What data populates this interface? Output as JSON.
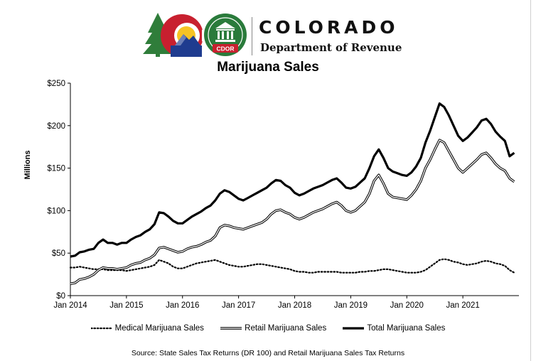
{
  "header": {
    "org_name": "COLORADO",
    "dept_name": "Department of Revenue",
    "seal_text": "CDOR",
    "colors": {
      "co_blue": "#1f3c8f",
      "co_red": "#c8202f",
      "co_gold": "#f6c324",
      "seal_green": "#2a7b3b",
      "tree_green": "#2f7d3a"
    }
  },
  "source_note": "Source: State Sales Tax Returns (DR 100) and Retail Marijuana  Sales Tax Returns",
  "chart_data": {
    "type": "line",
    "title": "Marijuana Sales",
    "ylabel": "Millions",
    "xlabel": "",
    "ylim": [
      0,
      250
    ],
    "y_ticks": [
      0,
      50,
      100,
      150,
      200,
      250
    ],
    "y_tick_labels": [
      "$0",
      "$50",
      "$100",
      "$150",
      "$200",
      "$250"
    ],
    "x_tick_labels": [
      "Jan 2014",
      "Jan 2015",
      "Jan 2016",
      "Jan 2017",
      "Jan 2018",
      "Jan 2019",
      "Jan 2020",
      "Jan 2021"
    ],
    "x_start": "Jan 2014",
    "x_end": "Dec 2021",
    "grid": false,
    "legend_position": "bottom",
    "series": [
      {
        "name": "Medical Marijuana Sales",
        "style": "dotted",
        "values": [
          33,
          33,
          34,
          33,
          32,
          31,
          31,
          31,
          30,
          30,
          30,
          30,
          29,
          30,
          31,
          32,
          33,
          34,
          36,
          42,
          40,
          38,
          34,
          32,
          32,
          34,
          36,
          38,
          39,
          40,
          41,
          42,
          40,
          38,
          36,
          35,
          34,
          34,
          35,
          36,
          37,
          37,
          36,
          35,
          34,
          33,
          32,
          31,
          29,
          28,
          28,
          27,
          27,
          28,
          28,
          28,
          28,
          28,
          27,
          27,
          27,
          27,
          28,
          28,
          29,
          29,
          30,
          31,
          31,
          30,
          29,
          28,
          27,
          27,
          27,
          28,
          30,
          34,
          38,
          42,
          43,
          42,
          40,
          39,
          37,
          36,
          37,
          38,
          40,
          41,
          40,
          38,
          37,
          35,
          30,
          27
        ]
      },
      {
        "name": "Retail Marijuana Sales",
        "style": "double",
        "values": [
          14,
          15,
          19,
          20,
          22,
          25,
          30,
          33,
          32,
          32,
          31,
          32,
          33,
          36,
          38,
          39,
          42,
          44,
          48,
          56,
          57,
          55,
          53,
          51,
          52,
          55,
          57,
          58,
          60,
          63,
          65,
          70,
          80,
          83,
          82,
          80,
          79,
          78,
          80,
          82,
          84,
          86,
          90,
          96,
          100,
          101,
          98,
          96,
          92,
          90,
          92,
          95,
          98,
          100,
          102,
          105,
          108,
          110,
          106,
          100,
          98,
          100,
          105,
          110,
          120,
          135,
          142,
          132,
          120,
          116,
          115,
          114,
          113,
          118,
          125,
          135,
          150,
          160,
          172,
          183,
          180,
          170,
          160,
          150,
          145,
          150,
          155,
          160,
          166,
          168,
          162,
          155,
          150,
          147,
          138,
          134
        ]
      },
      {
        "name": "Total Marijuana Sales",
        "style": "solid",
        "values": [
          46,
          47,
          51,
          52,
          54,
          55,
          62,
          66,
          62,
          62,
          60,
          62,
          62,
          66,
          69,
          71,
          75,
          78,
          84,
          98,
          97,
          93,
          88,
          85,
          85,
          89,
          93,
          96,
          99,
          103,
          106,
          112,
          120,
          124,
          122,
          118,
          114,
          112,
          115,
          118,
          121,
          124,
          127,
          132,
          136,
          135,
          130,
          127,
          121,
          118,
          120,
          123,
          126,
          128,
          130,
          133,
          136,
          138,
          133,
          127,
          126,
          128,
          133,
          138,
          150,
          164,
          172,
          162,
          150,
          146,
          144,
          142,
          141,
          145,
          152,
          162,
          180,
          194,
          210,
          226,
          222,
          212,
          200,
          188,
          182,
          186,
          192,
          198,
          206,
          208,
          202,
          193,
          187,
          182,
          164,
          168
        ]
      }
    ]
  }
}
